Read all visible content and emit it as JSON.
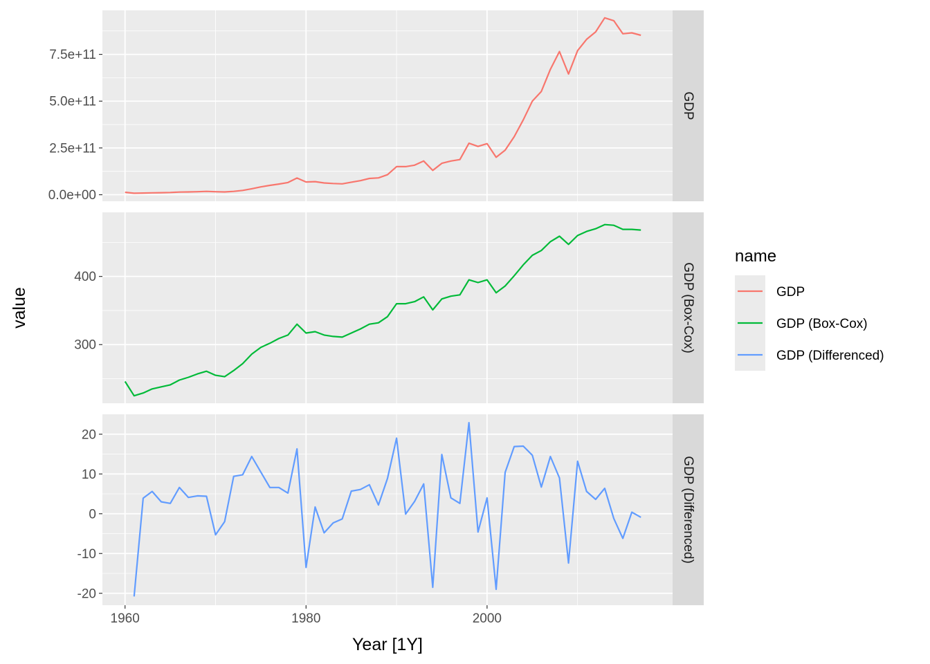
{
  "chart_data": {
    "type": "line",
    "facet": "rows",
    "xlabel": "Year [1Y]",
    "ylabel": "value",
    "x_ticks": [
      1960,
      1980,
      2000
    ],
    "x_range": [
      1957.5,
      2020.5
    ],
    "legend": {
      "title": "name",
      "position": "right",
      "entries": [
        "GDP",
        "GDP (Box-Cox)",
        "GDP (Differenced)"
      ]
    },
    "colors": {
      "GDP": "#F8766D",
      "GDP (Box-Cox)": "#00BA38",
      "GDP (Differenced)": "#619CFF",
      "panel": "#EBEBEB",
      "strip": "#D9D9D9",
      "grid": "#FFFFFF"
    },
    "grid": true,
    "x": [
      1960,
      1961,
      1962,
      1963,
      1964,
      1965,
      1966,
      1967,
      1968,
      1969,
      1970,
      1971,
      1972,
      1973,
      1974,
      1975,
      1976,
      1977,
      1978,
      1979,
      1980,
      1981,
      1982,
      1983,
      1984,
      1985,
      1986,
      1987,
      1988,
      1989,
      1990,
      1991,
      1992,
      1993,
      1994,
      1995,
      1996,
      1997,
      1998,
      1999,
      2000,
      2001,
      2002,
      2003,
      2004,
      2005,
      2006,
      2007,
      2008,
      2009,
      2010,
      2011,
      2012,
      2013,
      2014,
      2015,
      2016,
      2017
    ],
    "panels": [
      {
        "strip": "GDP",
        "series": "GDP",
        "y_ticks": [
          0,
          250000000000,
          500000000000,
          750000000000
        ],
        "y_tick_labels": [
          "0.0e+00",
          "2.5e+11",
          "5.0e+11",
          "7.5e+11"
        ],
        "ylim": [
          -35000000000,
          985000000000
        ],
        "values": [
          13000000000,
          8000000000,
          9000000000,
          10000000000,
          11000000000,
          12000000000,
          14000000000,
          15000000000,
          16000000000,
          18000000000,
          16000000000,
          15000000000,
          18000000000,
          23000000000,
          32000000000,
          42000000000,
          50000000000,
          57000000000,
          65000000000,
          89000000000,
          68000000000,
          70000000000,
          63000000000,
          60000000000,
          58000000000,
          67000000000,
          75000000000,
          87000000000,
          90000000000,
          107000000000,
          150000000000,
          150000000000,
          158000000000,
          180000000000,
          130000000000,
          168000000000,
          180000000000,
          188000000000,
          275000000000,
          258000000000,
          273000000000,
          200000000000,
          238000000000,
          310000000000,
          400000000000,
          500000000000,
          552000000000,
          670000000000,
          765000000000,
          645000000000,
          770000000000,
          830000000000,
          870000000000,
          945000000000,
          930000000000,
          860000000000,
          865000000000,
          852000000000
        ]
      },
      {
        "strip": "GDP (Box-Cox)",
        "series": "GDP (Box-Cox)",
        "y_ticks": [
          300,
          400
        ],
        "y_tick_labels": [
          "300",
          "400"
        ],
        "ylim": [
          214,
          494
        ],
        "values": [
          246,
          225,
          229,
          235,
          238,
          241,
          248,
          252,
          257,
          261,
          255,
          253,
          262,
          272,
          286,
          296,
          302,
          309,
          314,
          330,
          317,
          319,
          314,
          312,
          311,
          317,
          323,
          330,
          332,
          341,
          360,
          360,
          363,
          370,
          351,
          367,
          371,
          373,
          395,
          391,
          395,
          376,
          386,
          401,
          417,
          431,
          438,
          451,
          459,
          447,
          460,
          466,
          470,
          476,
          475,
          469,
          469,
          468
        ]
      },
      {
        "strip": "GDP (Differenced)",
        "series": "GDP (Differenced)",
        "y_ticks": [
          -20,
          -10,
          0,
          10,
          20
        ],
        "y_tick_labels": [
          "-20",
          "-10",
          "0",
          "10",
          "20"
        ],
        "ylim": [
          -23,
          25
        ],
        "values": [
          null,
          -20.8,
          3.9,
          5.6,
          3.0,
          2.6,
          6.6,
          4.1,
          4.5,
          4.4,
          -5.3,
          -2.0,
          9.4,
          9.8,
          14.4,
          10.5,
          6.6,
          6.6,
          5.2,
          16.3,
          -13.5,
          1.7,
          -4.8,
          -2.3,
          -1.3,
          5.7,
          6.1,
          7.3,
          2.2,
          8.9,
          19.0,
          -0.1,
          3.1,
          7.5,
          -18.5,
          14.9,
          4.0,
          2.6,
          22.9,
          -4.6,
          4.0,
          -19.0,
          10.4,
          16.9,
          17.0,
          14.7,
          6.7,
          14.4,
          9.0,
          -12.4,
          13.2,
          5.6,
          3.6,
          6.4,
          -1.2,
          -6.2,
          0.4,
          -0.9
        ]
      }
    ]
  }
}
